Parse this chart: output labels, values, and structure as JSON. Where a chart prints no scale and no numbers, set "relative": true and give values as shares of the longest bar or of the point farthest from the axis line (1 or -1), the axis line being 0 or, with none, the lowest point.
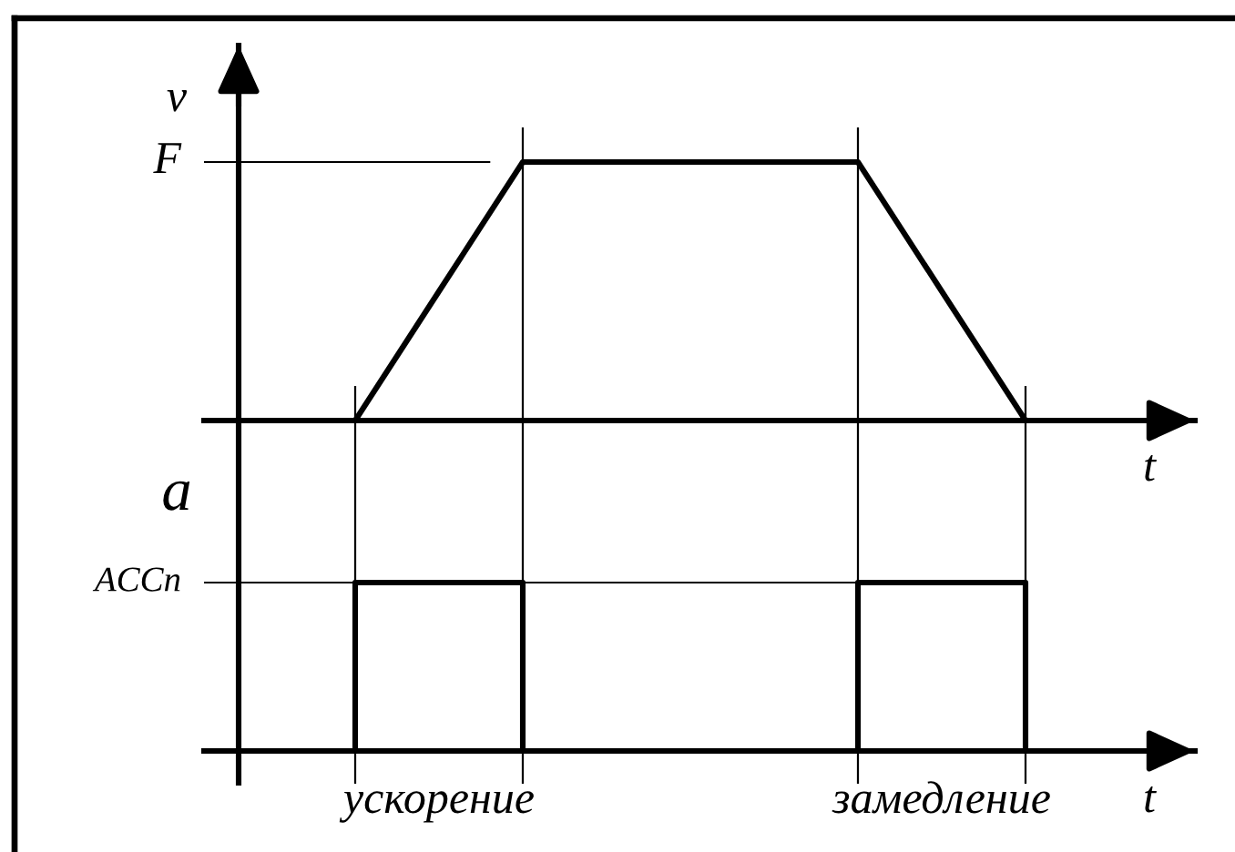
{
  "chart_data": [
    {
      "type": "line",
      "relative": true,
      "categories": [
        null,
        null,
        null,
        null,
        null,
        null,
        null,
        null,
        null,
        null
      ],
      "tick_labels": false,
      "ylabel": "v",
      "xlabel": "t",
      "grid": "x",
      "series": [
        {
          "color": "#000000",
          "values": [
            null,
            0,
            0.5,
            1,
            1,
            1,
            1,
            1,
            0.5,
            0
          ]
        }
      ],
      "ref_lines": [
        {
          "axis": "y",
          "value": 1,
          "label": "F"
        }
      ]
    },
    {
      "type": "step",
      "relative": true,
      "categories": [
        null,
        null,
        "ускорение",
        null,
        null,
        null,
        null,
        null,
        "замедление",
        null
      ],
      "tick_labels": "x",
      "ylabel": "a",
      "xlabel": "t",
      "series": [
        {
          "color": "#000000",
          "values": [
            0,
            1,
            1,
            0,
            0,
            0,
            0,
            1,
            1,
            0
          ]
        }
      ],
      "ref_lines": [
        {
          "axis": "y",
          "value": 1,
          "label": "ACCn"
        }
      ]
    }
  ]
}
